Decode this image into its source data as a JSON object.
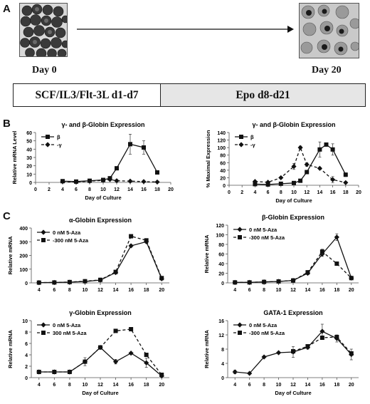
{
  "panels": {
    "a": "A",
    "b": "B",
    "c": "C"
  },
  "panel_a": {
    "start_label": "Day 0",
    "end_label": "Day 20",
    "condition_1": "SCF/IL3/Flt-3L d1-d7",
    "condition_2": "Epo d8-d21",
    "start_image": "erythroid-progenitor-cells-micrograph",
    "end_image": "mature-erythroid-cells-micrograph"
  },
  "chart_data": [
    {
      "id": "b-left",
      "type": "line",
      "title": "γ- and β-Globin Expression",
      "xlabel": "Day of Culture",
      "ylabel": "Relative mRNA Level",
      "xlim": [
        0,
        20
      ],
      "ylim": [
        0,
        60
      ],
      "xticks": [
        0,
        2,
        4,
        6,
        8,
        10,
        12,
        14,
        16,
        18,
        20
      ],
      "yticks": [
        0,
        10,
        20,
        30,
        40,
        50,
        60
      ],
      "legend": "top-left",
      "series": [
        {
          "name": "β",
          "marker": "square",
          "dash": false,
          "x": [
            4,
            6,
            8,
            10,
            11,
            12,
            14,
            16,
            18
          ],
          "y": [
            1.5,
            1,
            2,
            3,
            5,
            17,
            46,
            42,
            12
          ],
          "err": [
            0,
            0,
            0,
            0,
            0,
            1,
            12,
            8,
            2
          ]
        },
        {
          "name": "-γ",
          "marker": "diamond",
          "dash": true,
          "x": [
            4,
            6,
            8,
            10,
            11,
            12,
            14,
            16,
            18
          ],
          "y": [
            1,
            0.5,
            1.5,
            2.5,
            3.5,
            2,
            1.5,
            1,
            0.5
          ],
          "err": [
            0,
            0,
            0,
            0,
            0,
            0,
            0,
            0,
            0
          ]
        }
      ]
    },
    {
      "id": "b-right",
      "type": "line",
      "title": "γ- and β-Globin Expression",
      "xlabel": "Day of Culture",
      "ylabel": "% Maximal Expression",
      "xlim": [
        0,
        20
      ],
      "ylim": [
        0,
        140
      ],
      "xticks": [
        0,
        2,
        4,
        6,
        8,
        10,
        12,
        14,
        16,
        18,
        20
      ],
      "yticks": [
        0,
        20,
        40,
        60,
        80,
        100,
        120,
        140
      ],
      "legend": "top-left",
      "series": [
        {
          "name": "β",
          "marker": "square",
          "dash": false,
          "x": [
            4,
            6,
            8,
            10,
            11,
            12,
            14,
            15,
            16,
            18
          ],
          "y": [
            3,
            2,
            4,
            6,
            12,
            35,
            95,
            108,
            95,
            28
          ],
          "err": [
            0,
            0,
            0,
            0,
            0,
            3,
            20,
            0,
            15,
            5
          ]
        },
        {
          "name": "-γ",
          "marker": "diamond",
          "dash": true,
          "x": [
            4,
            6,
            8,
            10,
            11,
            12,
            14,
            16,
            18
          ],
          "y": [
            10,
            8,
            20,
            50,
            100,
            55,
            45,
            15,
            7
          ],
          "err": [
            0,
            0,
            0,
            8,
            4,
            5,
            0,
            8,
            0
          ]
        }
      ]
    },
    {
      "id": "c-alpha",
      "type": "line",
      "title": "α-Globin Expression",
      "xlabel": "",
      "ylabel": "Relative mRNA",
      "xlim": [
        3,
        21
      ],
      "ylim": [
        0,
        400
      ],
      "xticks": [
        4,
        6,
        8,
        10,
        12,
        14,
        16,
        18,
        20
      ],
      "yticks": [
        0,
        100,
        200,
        300,
        400
      ],
      "legend": "top-left",
      "series": [
        {
          "name": "0 nM 5-Aza",
          "marker": "diamond",
          "dash": false,
          "x": [
            4,
            6,
            8,
            10,
            12,
            14,
            16,
            18,
            20
          ],
          "y": [
            2,
            3,
            5,
            10,
            20,
            75,
            270,
            300,
            30
          ],
          "err": [
            0,
            0,
            0,
            0,
            0,
            0,
            10,
            10,
            0
          ]
        },
        {
          "name": "-300 nM 5-Aza",
          "marker": "square",
          "dash": true,
          "x": [
            4,
            6,
            8,
            10,
            12,
            14,
            16,
            18,
            20
          ],
          "y": [
            2,
            3,
            6,
            12,
            22,
            80,
            340,
            310,
            35
          ],
          "err": [
            0,
            0,
            0,
            0,
            0,
            0,
            10,
            10,
            0
          ]
        }
      ]
    },
    {
      "id": "c-beta",
      "type": "line",
      "title": "β-Globin Expression",
      "xlabel": "",
      "ylabel": "Relative mRNA",
      "xlim": [
        3,
        21
      ],
      "ylim": [
        0,
        120
      ],
      "xticks": [
        4,
        6,
        8,
        10,
        12,
        14,
        16,
        18,
        20
      ],
      "yticks": [
        0,
        20,
        40,
        60,
        80,
        100,
        120
      ],
      "legend": "top-left",
      "series": [
        {
          "name": "0 nM 5-Aza",
          "marker": "diamond",
          "dash": false,
          "x": [
            4,
            6,
            8,
            10,
            12,
            14,
            16,
            18,
            20
          ],
          "y": [
            1,
            1,
            2,
            3,
            5,
            20,
            60,
            95,
            10
          ],
          "err": [
            0,
            0,
            0,
            0,
            0,
            3,
            5,
            7,
            0
          ]
        },
        {
          "name": "-300 nM 5-Aza",
          "marker": "square",
          "dash": true,
          "x": [
            4,
            6,
            8,
            10,
            12,
            14,
            16,
            18,
            20
          ],
          "y": [
            1,
            1,
            2,
            3,
            5,
            22,
            65,
            40,
            10
          ],
          "err": [
            0,
            0,
            0,
            0,
            0,
            3,
            5,
            0,
            0
          ]
        }
      ]
    },
    {
      "id": "c-gamma",
      "type": "line",
      "title": "γ-Globin Expression",
      "xlabel": "Day of Culture",
      "ylabel": "Relative mRNA",
      "xlim": [
        3,
        21
      ],
      "ylim": [
        0,
        10
      ],
      "xticks": [
        4,
        6,
        8,
        10,
        12,
        14,
        16,
        18,
        20
      ],
      "yticks": [
        0,
        2,
        4,
        6,
        8,
        10
      ],
      "legend": "top-left",
      "series": [
        {
          "name": "0 nM 5-Aza",
          "marker": "diamond",
          "dash": false,
          "x": [
            4,
            6,
            8,
            10,
            12,
            14,
            16,
            18,
            20
          ],
          "y": [
            1,
            1,
            1,
            2.8,
            5.3,
            2.8,
            4.3,
            2.6,
            0.3
          ],
          "err": [
            0,
            0.3,
            0,
            0.7,
            0,
            0.4,
            0,
            0.8,
            0
          ]
        },
        {
          "name": "300 nM 5-Aza",
          "marker": "square",
          "dash": true,
          "x": [
            4,
            6,
            8,
            10,
            12,
            14,
            16,
            18,
            20
          ],
          "y": [
            1,
            1,
            1,
            2.8,
            5.3,
            8.2,
            8.5,
            4,
            0.5
          ],
          "err": [
            0,
            0,
            0,
            0,
            0,
            0.3,
            0,
            0,
            0
          ]
        }
      ]
    },
    {
      "id": "c-gata1",
      "type": "line",
      "title": "GATA-1 Expression",
      "xlabel": "Day of Culture",
      "ylabel": "Relative mRNA",
      "xlim": [
        3,
        21
      ],
      "ylim": [
        0,
        16
      ],
      "xticks": [
        4,
        6,
        8,
        10,
        12,
        14,
        16,
        18,
        20
      ],
      "yticks": [
        0,
        4,
        8,
        12,
        16
      ],
      "legend": "top-left",
      "series": [
        {
          "name": "0 nM 5-Aza",
          "marker": "diamond",
          "dash": false,
          "x": [
            4,
            6,
            8,
            10,
            12,
            14,
            16,
            18,
            20
          ],
          "y": [
            1.6,
            1.2,
            5.8,
            7,
            7.2,
            8.5,
            13,
            11,
            6.5
          ],
          "err": [
            0.5,
            0,
            0,
            0,
            1.5,
            0.5,
            2,
            1,
            1.5
          ]
        },
        {
          "name": "-300 nM 5-Aza",
          "marker": "square",
          "dash": true,
          "x": [
            12,
            14,
            16,
            18,
            20
          ],
          "y": [
            7.4,
            8.8,
            11.2,
            11.4,
            6.8
          ],
          "err": [
            0,
            0,
            0.5,
            0,
            0
          ]
        }
      ]
    }
  ]
}
